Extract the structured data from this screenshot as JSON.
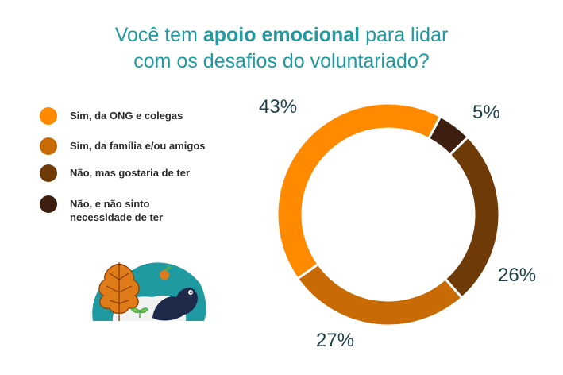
{
  "title": {
    "part1": "Você tem ",
    "bold": "apoio emocional",
    "part2": " para lidar",
    "line2": "com os desafios do voluntariado?"
  },
  "colors": {
    "title": "#1e9aa0",
    "slice1": "#ff8a00",
    "slice2": "#c86a05",
    "slice3": "#6e3a08",
    "slice4": "#3d1f12",
    "label": "#1d3f4a"
  },
  "chart_data": {
    "type": "pie",
    "style": "donut",
    "categories": [
      "Sim, da ONG e colegas",
      "Sim, da família e/ou amigos",
      "Não, mas gostaria de ter",
      "Não, e não sinto\nnecessidade de ter"
    ],
    "values": [
      43,
      27,
      26,
      5
    ],
    "data_labels": [
      "43%",
      "27%",
      "26%",
      "5%"
    ],
    "legend_position": "left"
  },
  "illustration": {
    "name": "volunteer-leaves-illustration"
  }
}
